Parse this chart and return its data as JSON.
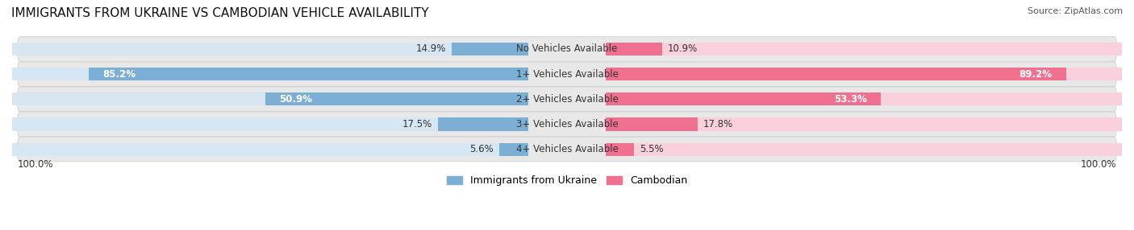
{
  "title": "IMMIGRANTS FROM UKRAINE VS CAMBODIAN VEHICLE AVAILABILITY",
  "source": "Source: ZipAtlas.com",
  "categories": [
    "No Vehicles Available",
    "1+ Vehicles Available",
    "2+ Vehicles Available",
    "3+ Vehicles Available",
    "4+ Vehicles Available"
  ],
  "ukraine_values": [
    14.9,
    85.2,
    50.9,
    17.5,
    5.6
  ],
  "cambodian_values": [
    10.9,
    89.2,
    53.3,
    17.8,
    5.5
  ],
  "ukraine_color": "#7bafd4",
  "cambodian_color": "#f07090",
  "ukraine_light_color": "#d6e6f2",
  "cambodian_light_color": "#fad0dc",
  "row_bg_color": "#e8e8e8",
  "label_color": "#333333",
  "white_label_color": "#ffffff",
  "title_fontsize": 11,
  "source_fontsize": 8,
  "value_fontsize": 8.5,
  "category_fontsize": 8.5,
  "legend_fontsize": 9,
  "figsize": [
    14.06,
    2.86
  ],
  "dpi": 100
}
